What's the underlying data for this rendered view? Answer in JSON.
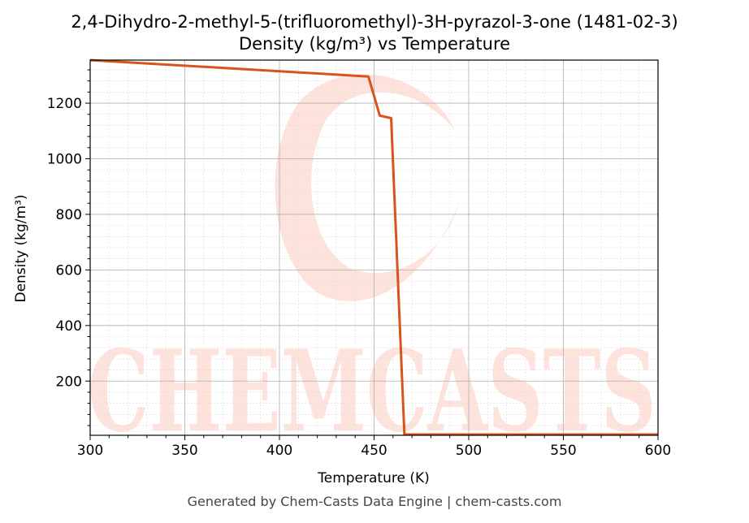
{
  "chart_data": {
    "type": "line",
    "title": "2,4-Dihydro-2-methyl-5-(trifluoromethyl)-3H-pyrazol-3-one (1481-02-3)",
    "subtitle": "Density (kg/m³) vs Temperature",
    "xlabel": "Temperature (K)",
    "ylabel": "Density (kg/m³)",
    "xlim": [
      300,
      600
    ],
    "ylim": [
      5,
      1355
    ],
    "xticks": [
      300,
      350,
      400,
      450,
      500,
      550,
      600
    ],
    "yticks": [
      200,
      400,
      600,
      800,
      1000,
      1200
    ],
    "grid": true,
    "line_color": "#d9531e",
    "series": [
      {
        "x": [
          300,
          447,
          453,
          459,
          466,
          470,
          500,
          550,
          600
        ],
        "y": [
          1355,
          1296,
          1155,
          1146,
          8,
          8,
          8,
          8,
          8
        ]
      }
    ]
  },
  "watermark": "CHEMCASTS",
  "footer": "Generated by Chem-Casts Data Engine | chem-casts.com"
}
